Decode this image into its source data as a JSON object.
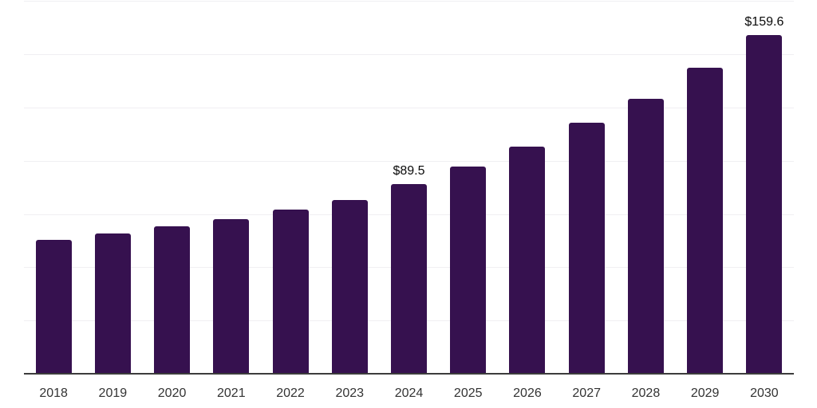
{
  "chart_data": {
    "type": "bar",
    "title": "",
    "xlabel": "",
    "ylabel": "",
    "categories": [
      "2018",
      "2019",
      "2020",
      "2021",
      "2022",
      "2023",
      "2024",
      "2025",
      "2026",
      "2027",
      "2028",
      "2029",
      "2030"
    ],
    "values": [
      63.4,
      66.4,
      69.5,
      72.8,
      77.4,
      82.1,
      89.5,
      97.6,
      107.2,
      118.1,
      129.4,
      144.0,
      159.6
    ],
    "data_labels": [
      {
        "category": "2024",
        "text": "$89.5"
      },
      {
        "category": "2030",
        "text": "$159.6"
      }
    ],
    "ylim": [
      0,
      175
    ],
    "gridline_step": 25,
    "grid": "horizontal-only",
    "y_axis_labels_visible": false,
    "legend": "none",
    "colors": {
      "bar": "#36114f",
      "axis_line": "#3c3c3c",
      "gridline": "#f0eff2",
      "tick_label": "#333333",
      "data_label": "#0a0a0a",
      "background": "#ffffff"
    }
  }
}
